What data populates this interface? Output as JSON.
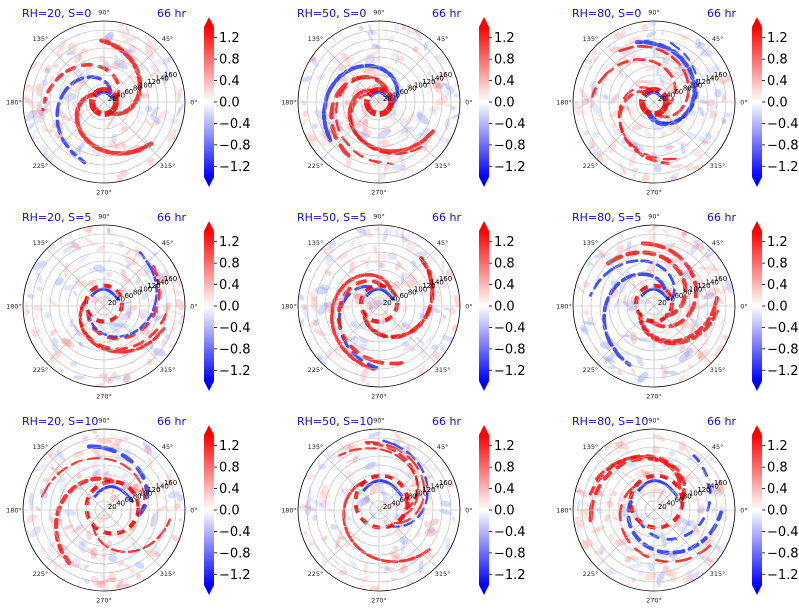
{
  "chart_data": {
    "type": "heatmap",
    "projection": "polar",
    "colormap": "bwr",
    "colors": {
      "negative": "#0000ff",
      "zero": "#ffffff",
      "positive": "#ff0000"
    },
    "angular_ticks": [
      "0°",
      "45°",
      "90°",
      "135°",
      "180°",
      "225°",
      "270°",
      "315°"
    ],
    "radial_ticks": [
      20,
      40,
      60,
      80,
      100,
      120,
      140,
      160
    ],
    "radial_range": [
      0,
      180
    ],
    "grid": true,
    "colorbar": {
      "range": [
        -1.4,
        1.4
      ],
      "extend": "both",
      "tick_values": [
        -1.2,
        -0.8,
        -0.4,
        0.0,
        0.4,
        0.8,
        1.2
      ],
      "tick_labels": [
        "−1.2",
        "−0.8",
        "−0.4",
        "0.0",
        "0.4",
        "0.8",
        "1.2"
      ]
    },
    "panels": [
      {
        "title": "RH=20, S=0",
        "time": "66 hr",
        "rh": 20,
        "s": 0
      },
      {
        "title": "RH=50, S=0",
        "time": "66 hr",
        "rh": 50,
        "s": 0
      },
      {
        "title": "RH=80, S=0",
        "time": "66 hr",
        "rh": 80,
        "s": 0
      },
      {
        "title": "RH=20, S=5",
        "time": "66 hr",
        "rh": 20,
        "s": 5
      },
      {
        "title": "RH=50, S=5",
        "time": "66 hr",
        "rh": 50,
        "s": 5
      },
      {
        "title": "RH=80, S=5",
        "time": "66 hr",
        "rh": 80,
        "s": 5
      },
      {
        "title": "RH=20, S=10",
        "time": "66 hr",
        "rh": 20,
        "s": 10
      },
      {
        "title": "RH=50, S=10",
        "time": "66 hr",
        "rh": 50,
        "s": 10
      },
      {
        "title": "RH=80, S=10",
        "time": "66 hr",
        "rh": 80,
        "s": 10
      }
    ]
  }
}
